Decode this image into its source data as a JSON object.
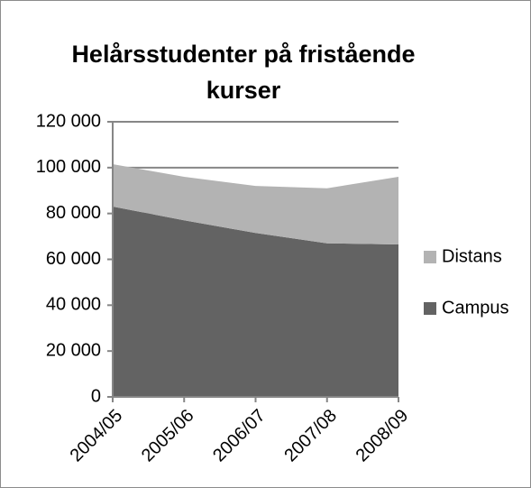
{
  "chart_data": {
    "type": "stacked_area",
    "title": "Helårsstudenter på fristående kurser",
    "categories": [
      "2004/05",
      "2005/06",
      "2006/07",
      "2007/08",
      "2008/09"
    ],
    "series": [
      {
        "name": "Campus",
        "color": "#636363",
        "values": [
          83000,
          77000,
          71500,
          67000,
          66500
        ]
      },
      {
        "name": "Distans",
        "color": "#b3b3b3",
        "values": [
          18500,
          19000,
          20500,
          24000,
          29500
        ]
      }
    ],
    "ylim": [
      0,
      120000
    ],
    "yticks": [
      0,
      {
        "value": 20000,
        "label": "20 000"
      },
      {
        "value": 40000,
        "label": "40 000"
      },
      {
        "value": 60000,
        "label": "60 000"
      },
      {
        "value": 80000,
        "label": "80 000"
      },
      {
        "value": 100000,
        "label": "100 000"
      },
      {
        "value": 120000,
        "label": "120 000"
      }
    ],
    "grid": true,
    "legend": "right"
  }
}
